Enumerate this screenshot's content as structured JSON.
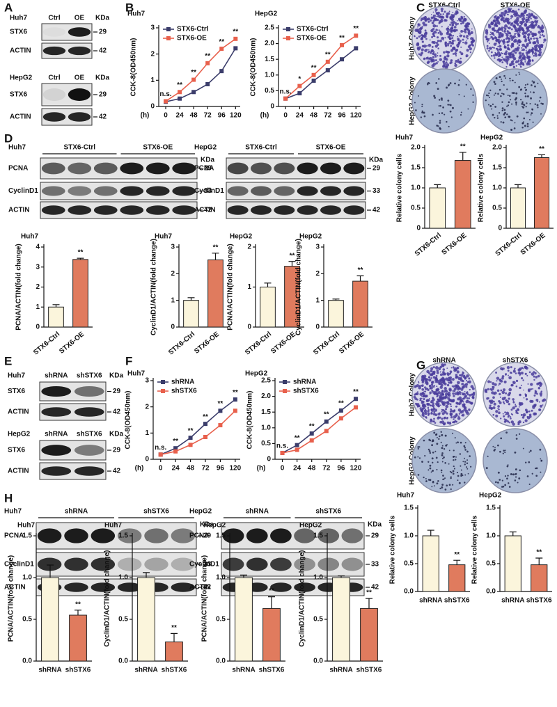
{
  "panel_labels": [
    "A",
    "B",
    "C",
    "D",
    "E",
    "F",
    "G",
    "H"
  ],
  "blots": [
    {
      "cell": "Huh7",
      "lanes": [
        "Ctrl",
        "OE"
      ],
      "unit": "KDa",
      "rows": [
        {
          "protein": "STX6",
          "kda": "29"
        },
        {
          "protein": "ACTIN",
          "kda": "42"
        }
      ]
    },
    {
      "cell": "HepG2",
      "lanes": [
        "Ctrl",
        "OE"
      ],
      "unit": "KDa",
      "rows": [
        {
          "protein": "STX6",
          "kda": "29"
        },
        {
          "protein": "ACTIN",
          "kda": "42"
        }
      ]
    },
    {
      "cell": "Huh7",
      "groups": [
        "STX6-Ctrl",
        "STX6-OE"
      ],
      "unit": "KDa",
      "rows": [
        {
          "protein": "PCNA",
          "kda": "29"
        },
        {
          "protein": "CyclinD1",
          "kda": "33"
        },
        {
          "protein": "ACTIN",
          "kda": "42"
        }
      ]
    },
    {
      "cell": "HepG2",
      "groups": [
        "STX6-Ctrl",
        "STX6-OE"
      ],
      "unit": "KDa",
      "rows": [
        {
          "protein": "PCNA",
          "kda": "29"
        },
        {
          "protein": "CyclinD1",
          "kda": "33"
        },
        {
          "protein": "ACTIN",
          "kda": "42"
        }
      ]
    },
    {
      "cell": "Huh7",
      "lanes": [
        "shRNA",
        "shSTX6"
      ],
      "unit": "KDa",
      "rows": [
        {
          "protein": "STX6",
          "kda": "29"
        },
        {
          "protein": "ACTIN",
          "kda": "42"
        }
      ]
    },
    {
      "cell": "HepG2",
      "lanes": [
        "shRNA",
        "shSTX6"
      ],
      "unit": "KDa",
      "rows": [
        {
          "protein": "STX6",
          "kda": "29"
        },
        {
          "protein": "ACTIN",
          "kda": "42"
        }
      ]
    },
    {
      "cell": "Huh7",
      "groups": [
        "shRNA",
        "shSTX6"
      ],
      "unit": "KDa",
      "rows": [
        {
          "protein": "PCNA",
          "kda": "29"
        },
        {
          "protein": "CyclinD1",
          "kda": "33"
        },
        {
          "protein": "ACTIN",
          "kda": "42"
        }
      ]
    },
    {
      "cell": "HepG2",
      "groups": [
        "shRNA",
        "shSTX6"
      ],
      "unit": "KDa",
      "rows": [
        {
          "protein": "PCNA",
          "kda": "29"
        },
        {
          "protein": "CyclinD1",
          "kda": "33"
        },
        {
          "protein": "ACTIN",
          "kda": "42"
        }
      ]
    }
  ],
  "colonies": [
    {
      "columns": [
        "STX6-Ctrl",
        "STX6-OE"
      ],
      "rows": [
        "Huh7-Colony",
        "HepG2-Colony"
      ]
    },
    {
      "columns": [
        "shRNA",
        "shSTX6"
      ],
      "rows": [
        "Huh7-Colony",
        "HepG2-Colony"
      ]
    }
  ],
  "chart_data": [
    {
      "type": "line",
      "title": "Huh7",
      "xlabel": "(h)",
      "ylabel": "CCK-8(OD450nm)",
      "x": [
        0,
        24,
        48,
        72,
        96,
        120
      ],
      "xlim": [
        -12,
        128
      ],
      "xticks": [
        0,
        24,
        48,
        72,
        96,
        120
      ],
      "ylim": [
        0,
        3
      ],
      "yticks": [
        0,
        1,
        2,
        3
      ],
      "series": [
        {
          "name": "STX6-Ctrl",
          "color": "#3b3d6b",
          "values": [
            0.18,
            0.3,
            0.55,
            0.85,
            1.35,
            2.22
          ]
        },
        {
          "name": "STX6-OE",
          "color": "#e8604c",
          "values": [
            0.2,
            0.55,
            1.02,
            1.65,
            2.2,
            2.58
          ]
        }
      ],
      "annotations": [
        "n.s.",
        "**",
        "**",
        "**",
        "**",
        "**"
      ]
    },
    {
      "type": "line",
      "title": "HepG2",
      "xlabel": "(h)",
      "ylabel": "CCK-8(OD450nm)",
      "x": [
        0,
        24,
        48,
        72,
        96,
        120
      ],
      "xlim": [
        -12,
        128
      ],
      "xticks": [
        0,
        24,
        48,
        72,
        96,
        120
      ],
      "ylim": [
        0,
        2.5
      ],
      "yticks": [
        0,
        0.5,
        {
          "value": 1,
          "label": "1.0"
        },
        1.5,
        {
          "value": 2,
          "label": "2.0"
        },
        2.5
      ],
      "series": [
        {
          "name": "STX6-Ctrl",
          "color": "#3b3d6b",
          "values": [
            0.25,
            0.42,
            0.82,
            1.15,
            1.5,
            1.85
          ]
        },
        {
          "name": "STX6-OE",
          "color": "#e8604c",
          "values": [
            0.25,
            0.65,
            1.0,
            1.42,
            1.95,
            2.25
          ]
        }
      ],
      "annotations": [
        "n.s.",
        "*",
        "**",
        "**",
        "**",
        "**"
      ]
    },
    {
      "type": "bar",
      "title": "Huh7",
      "ylabel": "Relative colony cells",
      "categories": [
        "STX6-Ctrl",
        "STX6-OE"
      ],
      "values": [
        1,
        1.68
      ],
      "errors": [
        0.08,
        0.2
      ],
      "colors": [
        "#fbf5dc",
        "#e07b5e"
      ],
      "value_annotations": [
        null,
        "**"
      ],
      "ylim": [
        0,
        2
      ],
      "yticks": [
        0,
        0.5,
        {
          "value": 1,
          "label": "1.0"
        },
        1.5,
        {
          "value": 2,
          "label": "2.0"
        }
      ]
    },
    {
      "type": "bar",
      "title": "HepG2",
      "ylabel": "Relative colony cells",
      "categories": [
        "STX6-Ctrl",
        "STX6-OE"
      ],
      "values": [
        1,
        1.75
      ],
      "errors": [
        0.08,
        0.07
      ],
      "colors": [
        "#fbf5dc",
        "#e07b5e"
      ],
      "value_annotations": [
        null,
        "**"
      ],
      "ylim": [
        0,
        2
      ],
      "yticks": [
        0,
        0.5,
        {
          "value": 1,
          "label": "1.0"
        },
        1.5,
        {
          "value": 2,
          "label": "2.0"
        }
      ]
    },
    {
      "type": "bar",
      "title": "Huh7",
      "ylabel": "PCNA/ACTIN(fold change)",
      "categories": [
        "STX6-Ctrl",
        "STX6-OE"
      ],
      "values": [
        1,
        3.38
      ],
      "errors": [
        0.12,
        0.06
      ],
      "colors": [
        "#fbf5dc",
        "#e07b5e"
      ],
      "value_annotations": [
        null,
        "**"
      ],
      "ylim": [
        0,
        4
      ],
      "yticks": [
        0,
        1,
        2,
        3,
        4
      ]
    },
    {
      "type": "bar",
      "title": "Huh7",
      "ylabel": "CyclinD1/ACTIN(fold change)",
      "categories": [
        "STX6-Ctrl",
        "STX6-OE"
      ],
      "values": [
        1,
        2.52
      ],
      "errors": [
        0.1,
        0.25
      ],
      "colors": [
        "#fbf5dc",
        "#e07b5e"
      ],
      "value_annotations": [
        null,
        "**"
      ],
      "ylim": [
        0,
        3
      ],
      "yticks": [
        0,
        1,
        2,
        3
      ]
    },
    {
      "type": "bar",
      "title": "HepG2",
      "ylabel": "PCNA/ACTIN(fold change)",
      "categories": [
        "STX6-Ctrl",
        "STX6-OE"
      ],
      "values": [
        1,
        1.52
      ],
      "errors": [
        0.1,
        0.12
      ],
      "colors": [
        "#fbf5dc",
        "#e07b5e"
      ],
      "value_annotations": [
        null,
        "**"
      ],
      "ylim": [
        0,
        2
      ],
      "yticks": [
        0,
        1,
        2
      ]
    },
    {
      "type": "bar",
      "title": "HepG2",
      "ylabel": "CyclinD1/ACTIN(fold change)",
      "categories": [
        "STX6-Ctrl",
        "STX6-OE"
      ],
      "values": [
        1,
        1.72
      ],
      "errors": [
        0.05,
        0.2
      ],
      "colors": [
        "#fbf5dc",
        "#e07b5e"
      ],
      "value_annotations": [
        null,
        "**"
      ],
      "ylim": [
        0,
        3
      ],
      "yticks": [
        0,
        1,
        2,
        3
      ]
    },
    {
      "type": "line",
      "title": "Huh7",
      "xlabel": "(h)",
      "ylabel": "CCK-8(OD450nm)",
      "x": [
        0,
        24,
        48,
        72,
        96,
        120
      ],
      "xlim": [
        -12,
        128
      ],
      "xticks": [
        0,
        24,
        48,
        72,
        96,
        120
      ],
      "ylim": [
        0,
        3
      ],
      "yticks": [
        0,
        1,
        2,
        3
      ],
      "series": [
        {
          "name": "shRNA",
          "color": "#3b3d6b",
          "values": [
            0.18,
            0.42,
            0.82,
            1.35,
            1.85,
            2.28
          ]
        },
        {
          "name": "shSTX6",
          "color": "#e8604c",
          "values": [
            0.18,
            0.3,
            0.55,
            0.85,
            1.3,
            1.85
          ]
        }
      ],
      "annotations": [
        "n.s.",
        "**",
        "**",
        "**",
        "**",
        "**"
      ]
    },
    {
      "type": "line",
      "title": "HepG2",
      "xlabel": "(h)",
      "ylabel": "CCK-8(OD450nm)",
      "x": [
        0,
        24,
        48,
        72,
        96,
        120
      ],
      "xlim": [
        -12,
        128
      ],
      "xticks": [
        0,
        24,
        48,
        72,
        96,
        120
      ],
      "ylim": [
        0,
        2.5
      ],
      "yticks": [
        0,
        0.5,
        {
          "value": 1,
          "label": "1.0"
        },
        1.5,
        {
          "value": 2,
          "label": "2.0"
        },
        2.5
      ],
      "series": [
        {
          "name": "shRNA",
          "color": "#3b3d6b",
          "values": [
            0.2,
            0.45,
            0.82,
            1.2,
            1.55,
            1.92
          ]
        },
        {
          "name": "shSTX6",
          "color": "#e8604c",
          "values": [
            0.2,
            0.3,
            0.6,
            0.9,
            1.3,
            1.65
          ]
        }
      ],
      "annotations": [
        "n.s.",
        "**",
        "**",
        "**",
        "**",
        "**"
      ]
    },
    {
      "type": "bar",
      "title": "Huh7",
      "ylabel": "Relative colony cells",
      "categories": [
        "shRNA",
        "shSTX6"
      ],
      "values": [
        1,
        0.48
      ],
      "errors": [
        0.1,
        0.08
      ],
      "colors": [
        "#fbf5dc",
        "#e07b5e"
      ],
      "value_annotations": [
        null,
        "**"
      ],
      "ylim": [
        0,
        1.5
      ],
      "yticks": [
        {
          "value": 0,
          "label": "0.0"
        },
        0.5,
        {
          "value": 1,
          "label": "1.0"
        },
        1.5
      ]
    },
    {
      "type": "bar",
      "title": "HepG2",
      "ylabel": "Relative colony cells",
      "categories": [
        "shRNA",
        "shSTX6"
      ],
      "values": [
        1,
        0.48
      ],
      "errors": [
        0.07,
        0.12
      ],
      "colors": [
        "#fbf5dc",
        "#e07b5e"
      ],
      "value_annotations": [
        null,
        "**"
      ],
      "ylim": [
        0,
        1.5
      ],
      "yticks": [
        {
          "value": 0,
          "label": "0.0"
        },
        0.5,
        {
          "value": 1,
          "label": "1.0"
        },
        1.5
      ]
    },
    {
      "type": "bar",
      "title": "Huh7",
      "ylabel": "PCNA/ACTIN(fold change)",
      "categories": [
        "shRNA",
        "shSTX6"
      ],
      "values": [
        1,
        0.55
      ],
      "errors": [
        0.15,
        0.06
      ],
      "colors": [
        "#fbf5dc",
        "#e07b5e"
      ],
      "value_annotations": [
        null,
        "**"
      ],
      "ylim": [
        0,
        1.5
      ],
      "yticks": [
        {
          "value": 0,
          "label": "0.0"
        },
        0.5,
        {
          "value": 1,
          "label": "1.0"
        },
        1.5
      ]
    },
    {
      "type": "bar",
      "title": "Huh7",
      "ylabel": "CyclinD1/ACTIN(fold change)",
      "categories": [
        "shRNA",
        "shSTX6"
      ],
      "values": [
        1,
        0.23
      ],
      "errors": [
        0.06,
        0.1
      ],
      "colors": [
        "#fbf5dc",
        "#e07b5e"
      ],
      "value_annotations": [
        null,
        "**"
      ],
      "ylim": [
        0,
        1.5
      ],
      "yticks": [
        {
          "value": 0,
          "label": "0.0"
        },
        0.5,
        {
          "value": 1,
          "label": "1.0"
        },
        1.5
      ]
    },
    {
      "type": "bar",
      "title": "HepG2",
      "ylabel": "PCNA/ACTIN(fold change)",
      "categories": [
        "shRNA",
        "shSTX6"
      ],
      "values": [
        1,
        0.63
      ],
      "errors": [
        0.03,
        0.14
      ],
      "colors": [
        "#fbf5dc",
        "#e07b5e"
      ],
      "value_annotations": [
        null,
        "**"
      ],
      "ylim": [
        0,
        1.5
      ],
      "yticks": [
        {
          "value": 0,
          "label": "0.0"
        },
        0.5,
        {
          "value": 1,
          "label": "1.0"
        },
        1.5
      ]
    },
    {
      "type": "bar",
      "title": "HepG2",
      "ylabel": "CyclinD1/ACTIN(fold change)",
      "categories": [
        "shRNA",
        "shSTX6"
      ],
      "values": [
        1,
        0.63
      ],
      "errors": [
        0.02,
        0.12
      ],
      "colors": [
        "#fbf5dc",
        "#e07b5e"
      ],
      "value_annotations": [
        null,
        "**"
      ],
      "ylim": [
        0,
        1.5
      ],
      "yticks": [
        {
          "value": 0,
          "label": "0.0"
        },
        0.5,
        {
          "value": 1,
          "label": "1.0"
        },
        1.5
      ]
    }
  ]
}
